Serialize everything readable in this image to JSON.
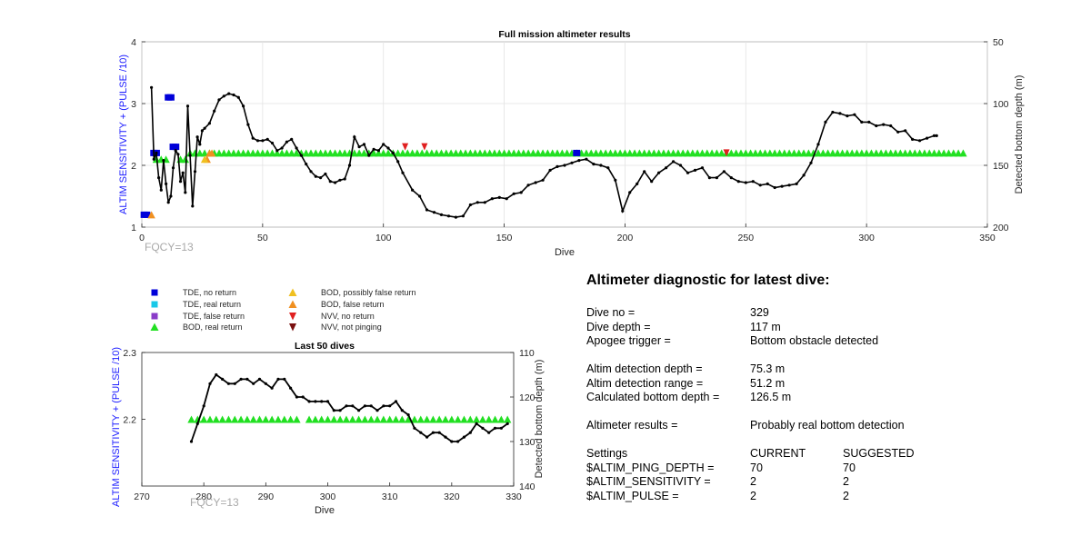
{
  "chart_data": [
    {
      "type": "line",
      "title": "Full mission altimeter results",
      "xlabel": "Dive",
      "ylabel": "ALTIM SENSITIVITY + (PULSE /10)",
      "ylabel_right": "Detected bottom depth (m)",
      "xlim": [
        0,
        350
      ],
      "ylim": [
        1,
        4
      ],
      "ylim_right": [
        50,
        200
      ],
      "right_axis_reversed": true,
      "x_ticks": [
        "0",
        "50",
        "100",
        "150",
        "200",
        "250",
        "300",
        "350"
      ],
      "y_ticks": [
        "1",
        "2",
        "3",
        "4"
      ],
      "y_ticks_right": [
        "50",
        "100",
        "150",
        "200"
      ],
      "grid": true,
      "annotation": "FQCY=13",
      "series": [
        {
          "name": "Detected bottom depth",
          "axis": "right",
          "x": [
            4,
            5,
            6,
            7,
            8,
            9,
            10,
            11,
            12,
            13,
            14,
            15,
            16,
            17,
            18,
            19,
            20,
            21,
            22,
            23,
            24,
            25,
            26,
            28,
            30,
            32,
            34,
            36,
            38,
            40,
            42,
            44,
            46,
            48,
            50,
            52,
            54,
            56,
            58,
            60,
            62,
            64,
            66,
            68,
            70,
            72,
            74,
            76,
            78,
            80,
            82,
            84,
            86,
            88,
            90,
            92,
            94,
            96,
            98,
            100,
            102,
            104,
            106,
            108,
            112,
            115,
            118,
            121,
            124,
            127,
            130,
            133,
            136,
            139,
            142,
            145,
            148,
            151,
            154,
            157,
            160,
            163,
            166,
            169,
            172,
            175,
            178,
            181,
            184,
            187,
            190,
            193,
            196,
            199,
            202,
            205,
            208,
            211,
            214,
            217,
            220,
            223,
            226,
            229,
            232,
            235,
            238,
            241,
            244,
            247,
            250,
            253,
            256,
            259,
            262,
            265,
            268,
            271,
            274,
            277,
            280,
            283,
            286,
            289,
            292,
            295,
            298,
            301,
            304,
            307,
            310,
            313,
            316,
            319,
            322,
            325,
            328,
            329
          ],
          "y": [
            87,
            145,
            140,
            160,
            170,
            146,
            165,
            180,
            175,
            152,
            138,
            141,
            163,
            156,
            172,
            102,
            142,
            183,
            155,
            127,
            133,
            122,
            120,
            116,
            106,
            97,
            94,
            92,
            93,
            95,
            102,
            117,
            128,
            130,
            130,
            129,
            132,
            138,
            136,
            131,
            129,
            136,
            142,
            149,
            155,
            159,
            160,
            157,
            163,
            164,
            162,
            161,
            150,
            127,
            135,
            133,
            142,
            137,
            138,
            133,
            136,
            140,
            147,
            156,
            170,
            175,
            186,
            188,
            190,
            191,
            192,
            191,
            182,
            180,
            180,
            177,
            176,
            177,
            173,
            172,
            166,
            164,
            162,
            154,
            151,
            150,
            148,
            146,
            145,
            149,
            150,
            152,
            162,
            187,
            172,
            165,
            155,
            163,
            156,
            152,
            147,
            150,
            156,
            154,
            152,
            160,
            160,
            155,
            160,
            163,
            164,
            163,
            166,
            165,
            168,
            167,
            166,
            165,
            158,
            148,
            133,
            115,
            107,
            108,
            110,
            109,
            115,
            115,
            118,
            117,
            118,
            123,
            122,
            129,
            130,
            128,
            126,
            126
          ],
          "color": "#000000"
        },
        {
          "name": "BOD, real return",
          "axis": "left",
          "x_range": [
            20,
            340
          ],
          "y": 2.2
        }
      ]
    },
    {
      "type": "line",
      "title": "Last 50 dives",
      "xlabel": "Dive",
      "ylabel": "ALTIM SENSITIVITY + (PULSE /10)",
      "ylabel_right": "Detected bottom depth (m)",
      "xlim": [
        270,
        330
      ],
      "ylim": [
        2.1,
        2.3
      ],
      "ylim_right": [
        110,
        140
      ],
      "right_axis_reversed": true,
      "x_ticks": [
        "270",
        "280",
        "290",
        "300",
        "310",
        "320",
        "330"
      ],
      "y_ticks": [
        "2.2",
        "2.3"
      ],
      "y_ticks_right": [
        "110",
        "120",
        "130",
        "140"
      ],
      "grid": false,
      "annotation": "FQCY=13",
      "series": [
        {
          "name": "Detected bottom depth",
          "axis": "right",
          "x": [
            278,
            279,
            280,
            281,
            282,
            283,
            284,
            285,
            286,
            287,
            288,
            289,
            290,
            291,
            292,
            293,
            294,
            295,
            296,
            297,
            298,
            299,
            300,
            301,
            302,
            303,
            304,
            305,
            306,
            307,
            308,
            309,
            310,
            311,
            312,
            313,
            314,
            315,
            316,
            317,
            318,
            319,
            320,
            321,
            322,
            323,
            324,
            325,
            326,
            327,
            328,
            329
          ],
          "y": [
            130,
            126,
            122,
            117,
            115,
            116,
            117,
            117,
            116,
            116,
            117,
            116,
            117,
            118,
            116,
            116,
            118,
            120,
            120,
            121,
            121,
            121,
            121,
            123,
            123,
            122,
            122,
            123,
            122,
            122,
            123,
            122,
            122,
            121,
            123,
            124,
            127,
            128,
            129,
            128,
            128,
            129,
            130,
            130,
            129,
            128,
            126,
            127,
            128,
            127,
            127,
            126
          ],
          "color": "#000000"
        },
        {
          "name": "BOD, real return",
          "axis": "left",
          "x_segments": [
            [
              278,
              295
            ],
            [
              297,
              329
            ]
          ],
          "y": 2.2
        }
      ]
    }
  ],
  "legend": [
    {
      "label": "TDE, no return",
      "marker": "square",
      "color": "#0000d9"
    },
    {
      "label": "TDE, real return",
      "marker": "square",
      "color": "#18c8e8"
    },
    {
      "label": "TDE, false return",
      "marker": "square",
      "color": "#8a3cc8"
    },
    {
      "label": "BOD, real return",
      "marker": "triangle-up",
      "color": "#22e022"
    },
    {
      "label": "BOD, possibly false return",
      "marker": "triangle-up",
      "color": "#f0c020"
    },
    {
      "label": "BOD, false return",
      "marker": "triangle-up",
      "color": "#f09020"
    },
    {
      "label": "NVV, no return",
      "marker": "triangle-down",
      "color": "#e02020"
    },
    {
      "label": "NVV, not pinging",
      "marker": "triangle-down",
      "color": "#7a1010"
    }
  ],
  "diagnostic": {
    "title": "Altimeter diagnostic for latest dive:",
    "dive_no_label": "Dive no =",
    "dive_no": "329",
    "dive_depth_label": "Dive depth =",
    "dive_depth": "117 m",
    "apogee_label": "Apogee trigger =",
    "apogee": "Bottom obstacle detected",
    "altim_depth_label": "Altim detection depth =",
    "altim_depth": "75.3 m",
    "altim_range_label": "Altim detection range =",
    "altim_range": "51.2 m",
    "calc_depth_label": "Calculated bottom depth =",
    "calc_depth": "126.5 m",
    "results_label": "Altimeter results =",
    "results": "Probably real bottom detection",
    "settings_label": "Settings",
    "current_label": "CURRENT",
    "suggested_label": "SUGGESTED",
    "settings": [
      {
        "name": "$ALTIM_PING_DEPTH =",
        "current": "70",
        "suggested": "70"
      },
      {
        "name": "$ALTIM_SENSITIVITY =",
        "current": "2",
        "suggested": "2"
      },
      {
        "name": "$ALTIM_PULSE =",
        "current": "2",
        "suggested": "2"
      }
    ]
  }
}
